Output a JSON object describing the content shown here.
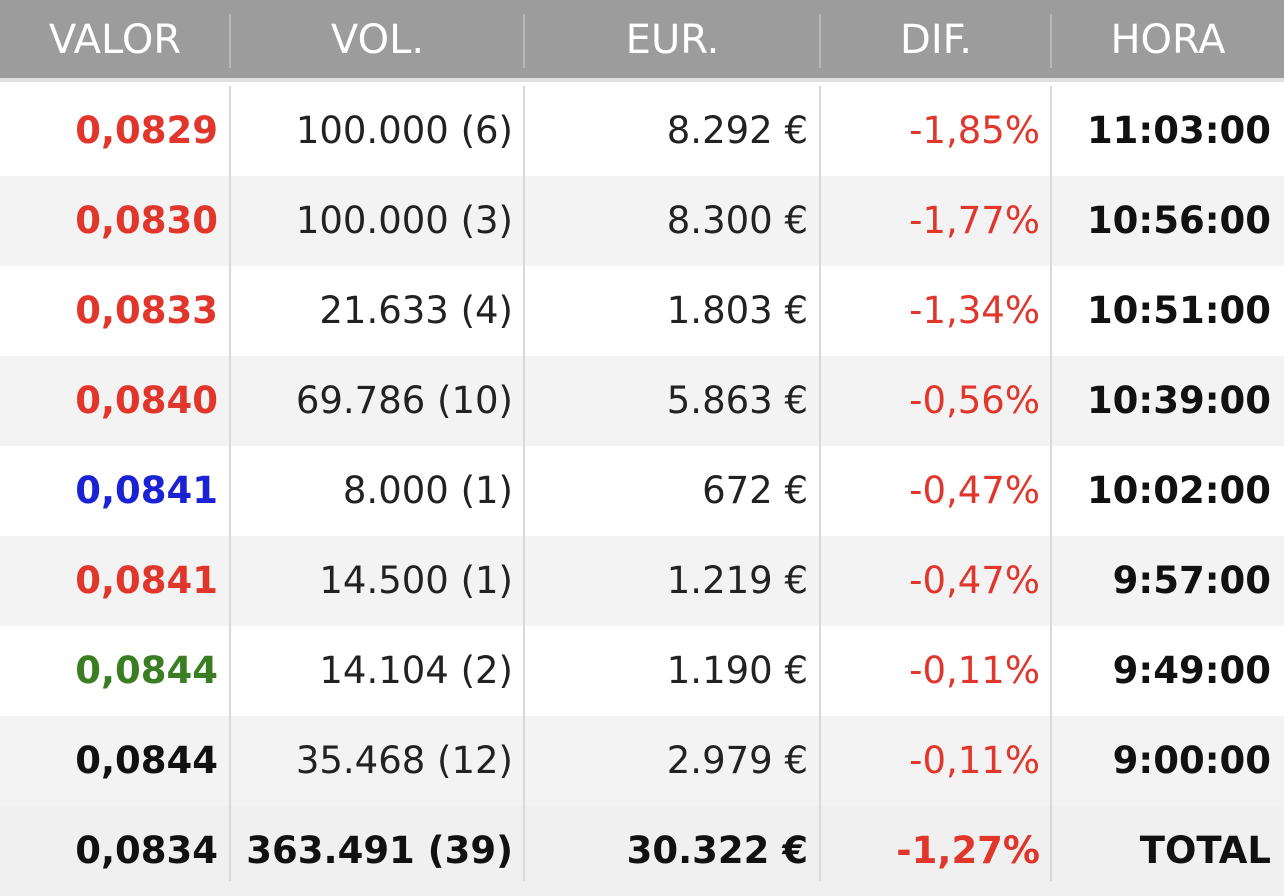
{
  "colors": {
    "header_bg": "#9c9c9c",
    "red": "#e0362c",
    "blue": "#1a22d4",
    "green": "#3a7d23",
    "black": "#111111"
  },
  "header": {
    "valor": "VALOR",
    "vol": "VOL.",
    "eur": "EUR.",
    "dif": "DIF.",
    "hora": "HORA"
  },
  "rows": [
    {
      "valor": "0,0829",
      "valor_color": "#e0362c",
      "vol": "100.000 (6)",
      "eur": "8.292 €",
      "dif": "-1,85%",
      "hora": "11:03:00"
    },
    {
      "valor": "0,0830",
      "valor_color": "#e0362c",
      "vol": "100.000 (3)",
      "eur": "8.300 €",
      "dif": "-1,77%",
      "hora": "10:56:00"
    },
    {
      "valor": "0,0833",
      "valor_color": "#e0362c",
      "vol": "21.633 (4)",
      "eur": "1.803 €",
      "dif": "-1,34%",
      "hora": "10:51:00"
    },
    {
      "valor": "0,0840",
      "valor_color": "#e0362c",
      "vol": "69.786 (10)",
      "eur": "5.863 €",
      "dif": "-0,56%",
      "hora": "10:39:00"
    },
    {
      "valor": "0,0841",
      "valor_color": "#1a22d4",
      "vol": "8.000 (1)",
      "eur": "672 €",
      "dif": "-0,47%",
      "hora": "10:02:00"
    },
    {
      "valor": "0,0841",
      "valor_color": "#e0362c",
      "vol": "14.500 (1)",
      "eur": "1.219 €",
      "dif": "-0,47%",
      "hora": "9:57:00"
    },
    {
      "valor": "0,0844",
      "valor_color": "#3a7d23",
      "vol": "14.104 (2)",
      "eur": "1.190 €",
      "dif": "-0,11%",
      "hora": "9:49:00"
    },
    {
      "valor": "0,0844",
      "valor_color": "#111111",
      "vol": "35.468 (12)",
      "eur": "2.979 €",
      "dif": "-0,11%",
      "hora": "9:00:00"
    }
  ],
  "total": {
    "valor": "0,0834",
    "vol": "363.491 (39)",
    "eur": "30.322 €",
    "dif": "-1,27%",
    "hora": "TOTAL"
  }
}
